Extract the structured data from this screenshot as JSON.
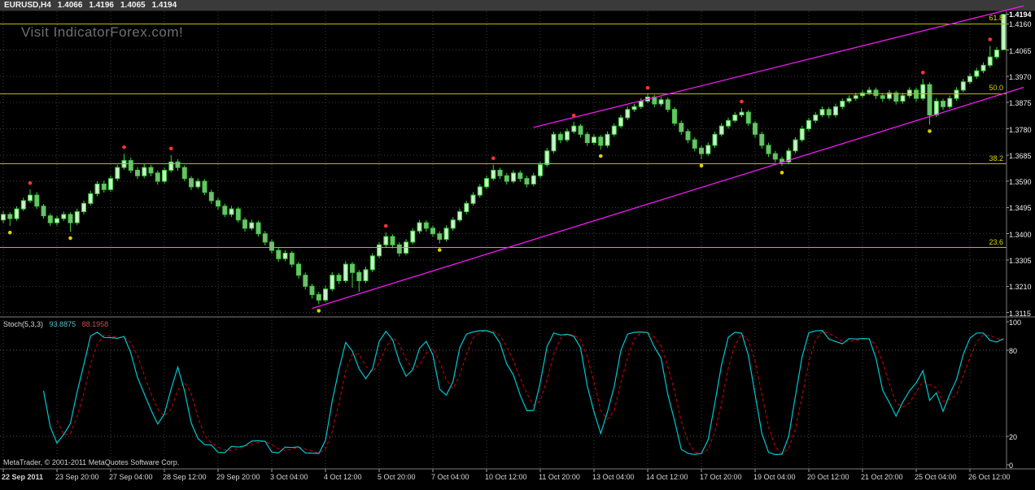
{
  "header": {
    "symbol": "EURUSD,H4",
    "open": "1.4066",
    "high": "1.4196",
    "low": "1.4065",
    "close": "1.4194"
  },
  "watermark": "Visit IndicatorForex.com!",
  "footer": {
    "copyright": "MetaTrader, © 2001-2011 MetaQuotes Software Corp."
  },
  "colors": {
    "background": "#000000",
    "grid": "#3e3e3e",
    "candle_outline": "#3ecf3e",
    "bull_body": "#c9f2c9",
    "bear_body": "#74bc74",
    "fibonacci": "#d8d800",
    "channel": "#f018f0",
    "fractal_up": "#ff3434",
    "fractal_down": "#ddd000",
    "stoch_main": "#00c8d2",
    "stoch_signal": "#d40000"
  },
  "chart_data": {
    "type": "candlestick",
    "title": "EURUSD H4 with Fibonacci levels, ascending channel, fractal dots and Stochastic oscillator",
    "symbol": "EURUSD",
    "timeframe": "H4",
    "price_axis": {
      "current": "1.4194",
      "labels": [
        "1.4160",
        "1.4065",
        "1.3970",
        "1.3875",
        "1.3780",
        "1.3685",
        "1.3590",
        "1.3495",
        "1.3400",
        "1.3305",
        "1.3210",
        "1.3115"
      ],
      "top_price": 1.4205,
      "bottom_price": 1.3105
    },
    "time_axis": [
      {
        "label": "22 Sep 2011",
        "index": 0
      },
      {
        "label": "23 Sep 20:00",
        "index": 8
      },
      {
        "label": "27 Sep 04:00",
        "index": 16
      },
      {
        "label": "28 Sep 12:00",
        "index": 24
      },
      {
        "label": "29 Sep 20:00",
        "index": 32
      },
      {
        "label": "3 Oct 04:00",
        "index": 40
      },
      {
        "label": "4 Oct 12:00",
        "index": 48
      },
      {
        "label": "5 Oct 20:00",
        "index": 56
      },
      {
        "label": "7 Oct 04:00",
        "index": 64
      },
      {
        "label": "10 Oct 12:00",
        "index": 72
      },
      {
        "label": "11 Oct 20:00",
        "index": 80
      },
      {
        "label": "13 Oct 04:00",
        "index": 88
      },
      {
        "label": "14 Oct 12:00",
        "index": 96
      },
      {
        "label": "17 Oct 20:00",
        "index": 104
      },
      {
        "label": "19 Oct 04:00",
        "index": 112
      },
      {
        "label": "20 Oct 12:00",
        "index": 120
      },
      {
        "label": "21 Oct 20:00",
        "index": 128
      },
      {
        "label": "25 Oct 04:00",
        "index": 136
      },
      {
        "label": "26 Oct 12:00",
        "index": 144
      }
    ],
    "fibonacci": [
      {
        "label": "61.8",
        "price": 1.416
      },
      {
        "label": "50.0",
        "price": 1.3907
      },
      {
        "label": "38.2",
        "price": 1.3653
      },
      {
        "label": "23.6",
        "price": 1.335
      }
    ],
    "trendlines": [
      {
        "name": "channel-lower",
        "from": [
          46,
          1.313
        ],
        "to": [
          152,
          1.393
        ]
      },
      {
        "name": "channel-upper",
        "from": [
          79,
          1.3785
        ],
        "to": [
          152,
          1.4225
        ]
      }
    ],
    "fractals": {
      "up": [
        4,
        18,
        25,
        57,
        73,
        85,
        96,
        110,
        137,
        147
      ],
      "down": [
        1,
        10,
        47,
        65,
        89,
        104,
        116,
        138
      ]
    },
    "indicator": {
      "name": "Stoch(5,3,3)",
      "k": "93.8875",
      "d": "88.1958",
      "levels": [
        80,
        20
      ],
      "axis_labels": [
        100,
        80,
        20,
        0
      ],
      "range": [
        0,
        100
      ]
    },
    "candles": [
      [
        1.345,
        1.3482,
        1.3438,
        1.347
      ],
      [
        1.347,
        1.3478,
        1.3428,
        1.3455
      ],
      [
        1.3455,
        1.35,
        1.3447,
        1.349
      ],
      [
        1.349,
        1.3531,
        1.3482,
        1.352
      ],
      [
        1.352,
        1.356,
        1.3512,
        1.354
      ],
      [
        1.354,
        1.3551,
        1.349,
        1.35
      ],
      [
        1.35,
        1.3508,
        1.3455,
        1.3465
      ],
      [
        1.3465,
        1.3474,
        1.3428,
        1.344
      ],
      [
        1.344,
        1.3466,
        1.343,
        1.3455
      ],
      [
        1.3455,
        1.3481,
        1.3446,
        1.347
      ],
      [
        1.347,
        1.3477,
        1.3408,
        1.344
      ],
      [
        1.344,
        1.3491,
        1.3432,
        1.348
      ],
      [
        1.348,
        1.352,
        1.347,
        1.351
      ],
      [
        1.351,
        1.3556,
        1.3502,
        1.3545
      ],
      [
        1.3545,
        1.359,
        1.3536,
        1.358
      ],
      [
        1.358,
        1.3592,
        1.3549,
        1.356
      ],
      [
        1.356,
        1.3611,
        1.3552,
        1.36
      ],
      [
        1.36,
        1.365,
        1.3591,
        1.364
      ],
      [
        1.364,
        1.369,
        1.3632,
        1.3665
      ],
      [
        1.3665,
        1.3676,
        1.362,
        1.363
      ],
      [
        1.363,
        1.3641,
        1.3598,
        1.361
      ],
      [
        1.361,
        1.3652,
        1.3601,
        1.364
      ],
      [
        1.364,
        1.3649,
        1.3608,
        1.362
      ],
      [
        1.362,
        1.3629,
        1.3578,
        1.359
      ],
      [
        1.359,
        1.364,
        1.3582,
        1.363
      ],
      [
        1.363,
        1.3685,
        1.3622,
        1.366
      ],
      [
        1.366,
        1.367,
        1.3628,
        1.364
      ],
      [
        1.364,
        1.3648,
        1.359,
        1.36
      ],
      [
        1.36,
        1.3609,
        1.3558,
        1.357
      ],
      [
        1.357,
        1.3601,
        1.3562,
        1.359
      ],
      [
        1.359,
        1.3598,
        1.354,
        1.355
      ],
      [
        1.355,
        1.356,
        1.3508,
        1.352
      ],
      [
        1.352,
        1.353,
        1.3488,
        1.35
      ],
      [
        1.35,
        1.3509,
        1.346,
        1.347
      ],
      [
        1.347,
        1.3501,
        1.3461,
        1.349
      ],
      [
        1.349,
        1.3498,
        1.344,
        1.345
      ],
      [
        1.345,
        1.3459,
        1.3408,
        1.342
      ],
      [
        1.342,
        1.3452,
        1.3412,
        1.344
      ],
      [
        1.344,
        1.3448,
        1.339,
        1.34
      ],
      [
        1.34,
        1.341,
        1.3358,
        1.337
      ],
      [
        1.337,
        1.3379,
        1.3328,
        1.334
      ],
      [
        1.334,
        1.335,
        1.3299,
        1.331
      ],
      [
        1.331,
        1.3341,
        1.3301,
        1.333
      ],
      [
        1.333,
        1.3338,
        1.3279,
        1.329
      ],
      [
        1.329,
        1.3299,
        1.3238,
        1.325
      ],
      [
        1.325,
        1.326,
        1.3198,
        1.321
      ],
      [
        1.321,
        1.3219,
        1.3166,
        1.318
      ],
      [
        1.318,
        1.319,
        1.3145,
        1.316
      ],
      [
        1.316,
        1.3212,
        1.3152,
        1.32
      ],
      [
        1.32,
        1.3261,
        1.3192,
        1.325
      ],
      [
        1.325,
        1.3259,
        1.3218,
        1.323
      ],
      [
        1.323,
        1.3301,
        1.3222,
        1.329
      ],
      [
        1.329,
        1.3298,
        1.3205,
        1.326
      ],
      [
        1.326,
        1.3269,
        1.319,
        1.323
      ],
      [
        1.323,
        1.3281,
        1.3221,
        1.327
      ],
      [
        1.327,
        1.333,
        1.3261,
        1.332
      ],
      [
        1.332,
        1.3371,
        1.3312,
        1.336
      ],
      [
        1.336,
        1.3405,
        1.3352,
        1.339
      ],
      [
        1.339,
        1.3398,
        1.3348,
        1.336
      ],
      [
        1.336,
        1.3369,
        1.3318,
        1.333
      ],
      [
        1.333,
        1.3381,
        1.3322,
        1.337
      ],
      [
        1.337,
        1.3421,
        1.3362,
        1.341
      ],
      [
        1.341,
        1.345,
        1.3401,
        1.344
      ],
      [
        1.344,
        1.3449,
        1.3408,
        1.342
      ],
      [
        1.342,
        1.343,
        1.3388,
        1.34
      ],
      [
        1.34,
        1.3409,
        1.3365,
        1.338
      ],
      [
        1.338,
        1.3431,
        1.3372,
        1.342
      ],
      [
        1.342,
        1.346,
        1.3411,
        1.345
      ],
      [
        1.345,
        1.3491,
        1.3442,
        1.348
      ],
      [
        1.348,
        1.352,
        1.3471,
        1.351
      ],
      [
        1.351,
        1.3551,
        1.3502,
        1.354
      ],
      [
        1.354,
        1.358,
        1.3531,
        1.357
      ],
      [
        1.357,
        1.3611,
        1.3562,
        1.36
      ],
      [
        1.36,
        1.365,
        1.3592,
        1.363
      ],
      [
        1.363,
        1.3639,
        1.3598,
        1.361
      ],
      [
        1.361,
        1.362,
        1.3578,
        1.359
      ],
      [
        1.359,
        1.3631,
        1.3582,
        1.362
      ],
      [
        1.362,
        1.3629,
        1.3588,
        1.36
      ],
      [
        1.36,
        1.361,
        1.3568,
        1.358
      ],
      [
        1.358,
        1.3621,
        1.3572,
        1.361
      ],
      [
        1.361,
        1.366,
        1.3601,
        1.365
      ],
      [
        1.365,
        1.3711,
        1.3642,
        1.37
      ],
      [
        1.37,
        1.377,
        1.3691,
        1.376
      ],
      [
        1.376,
        1.3769,
        1.3728,
        1.374
      ],
      [
        1.374,
        1.3781,
        1.3732,
        1.377
      ],
      [
        1.377,
        1.3805,
        1.3762,
        1.379
      ],
      [
        1.379,
        1.3798,
        1.3748,
        1.376
      ],
      [
        1.376,
        1.3769,
        1.3718,
        1.373
      ],
      [
        1.373,
        1.3761,
        1.3721,
        1.375
      ],
      [
        1.375,
        1.3758,
        1.3705,
        1.372
      ],
      [
        1.372,
        1.3771,
        1.3712,
        1.376
      ],
      [
        1.376,
        1.38,
        1.3751,
        1.379
      ],
      [
        1.379,
        1.3831,
        1.3782,
        1.382
      ],
      [
        1.382,
        1.386,
        1.3811,
        1.385
      ],
      [
        1.385,
        1.3871,
        1.3841,
        1.386
      ],
      [
        1.386,
        1.3891,
        1.3852,
        1.388
      ],
      [
        1.388,
        1.3905,
        1.3872,
        1.3895
      ],
      [
        1.3895,
        1.3903,
        1.3858,
        1.387
      ],
      [
        1.387,
        1.3896,
        1.3861,
        1.3885
      ],
      [
        1.3885,
        1.3893,
        1.384,
        1.385
      ],
      [
        1.385,
        1.3859,
        1.379,
        1.38
      ],
      [
        1.38,
        1.381,
        1.3758,
        1.377
      ],
      [
        1.377,
        1.3779,
        1.3728,
        1.374
      ],
      [
        1.374,
        1.375,
        1.3698,
        1.371
      ],
      [
        1.371,
        1.3719,
        1.367,
        1.369
      ],
      [
        1.369,
        1.3731,
        1.3682,
        1.372
      ],
      [
        1.372,
        1.377,
        1.3711,
        1.376
      ],
      [
        1.376,
        1.3801,
        1.3752,
        1.379
      ],
      [
        1.379,
        1.382,
        1.3781,
        1.381
      ],
      [
        1.381,
        1.3841,
        1.3802,
        1.383
      ],
      [
        1.383,
        1.3855,
        1.3822,
        1.384
      ],
      [
        1.384,
        1.3848,
        1.379,
        1.38
      ],
      [
        1.38,
        1.3809,
        1.3748,
        1.376
      ],
      [
        1.376,
        1.377,
        1.3708,
        1.372
      ],
      [
        1.372,
        1.3729,
        1.3678,
        1.369
      ],
      [
        1.369,
        1.37,
        1.3658,
        1.367
      ],
      [
        1.367,
        1.3679,
        1.3645,
        1.366
      ],
      [
        1.366,
        1.3711,
        1.3652,
        1.37
      ],
      [
        1.37,
        1.375,
        1.3691,
        1.374
      ],
      [
        1.374,
        1.3791,
        1.3732,
        1.378
      ],
      [
        1.378,
        1.382,
        1.3771,
        1.381
      ],
      [
        1.381,
        1.3841,
        1.38,
        1.383
      ],
      [
        1.383,
        1.3861,
        1.3822,
        1.385
      ],
      [
        1.385,
        1.3859,
        1.3818,
        1.383
      ],
      [
        1.383,
        1.3871,
        1.3821,
        1.386
      ],
      [
        1.386,
        1.389,
        1.3851,
        1.388
      ],
      [
        1.388,
        1.3901,
        1.3872,
        1.389
      ],
      [
        1.389,
        1.3911,
        1.3881,
        1.39
      ],
      [
        1.39,
        1.392,
        1.3891,
        1.391
      ],
      [
        1.391,
        1.3931,
        1.3902,
        1.392
      ],
      [
        1.392,
        1.3929,
        1.3888,
        1.39
      ],
      [
        1.39,
        1.391,
        1.3878,
        1.389
      ],
      [
        1.389,
        1.3921,
        1.3882,
        1.391
      ],
      [
        1.391,
        1.3918,
        1.3868,
        1.388
      ],
      [
        1.388,
        1.3911,
        1.3871,
        1.39
      ],
      [
        1.39,
        1.393,
        1.3891,
        1.392
      ],
      [
        1.392,
        1.3929,
        1.3878,
        1.389
      ],
      [
        1.389,
        1.396,
        1.3882,
        1.394
      ],
      [
        1.394,
        1.3948,
        1.3795,
        1.383
      ],
      [
        1.383,
        1.3891,
        1.3822,
        1.388
      ],
      [
        1.388,
        1.3889,
        1.3848,
        1.386
      ],
      [
        1.386,
        1.3901,
        1.3852,
        1.389
      ],
      [
        1.389,
        1.3931,
        1.3881,
        1.392
      ],
      [
        1.392,
        1.3961,
        1.3912,
        1.395
      ],
      [
        1.395,
        1.3981,
        1.3941,
        1.397
      ],
      [
        1.397,
        1.4001,
        1.3961,
        1.399
      ],
      [
        1.399,
        1.4021,
        1.3981,
        1.401
      ],
      [
        1.401,
        1.408,
        1.4001,
        1.404
      ],
      [
        1.404,
        1.4076,
        1.4031,
        1.4065
      ],
      [
        1.4066,
        1.4196,
        1.4065,
        1.4194
      ]
    ]
  }
}
